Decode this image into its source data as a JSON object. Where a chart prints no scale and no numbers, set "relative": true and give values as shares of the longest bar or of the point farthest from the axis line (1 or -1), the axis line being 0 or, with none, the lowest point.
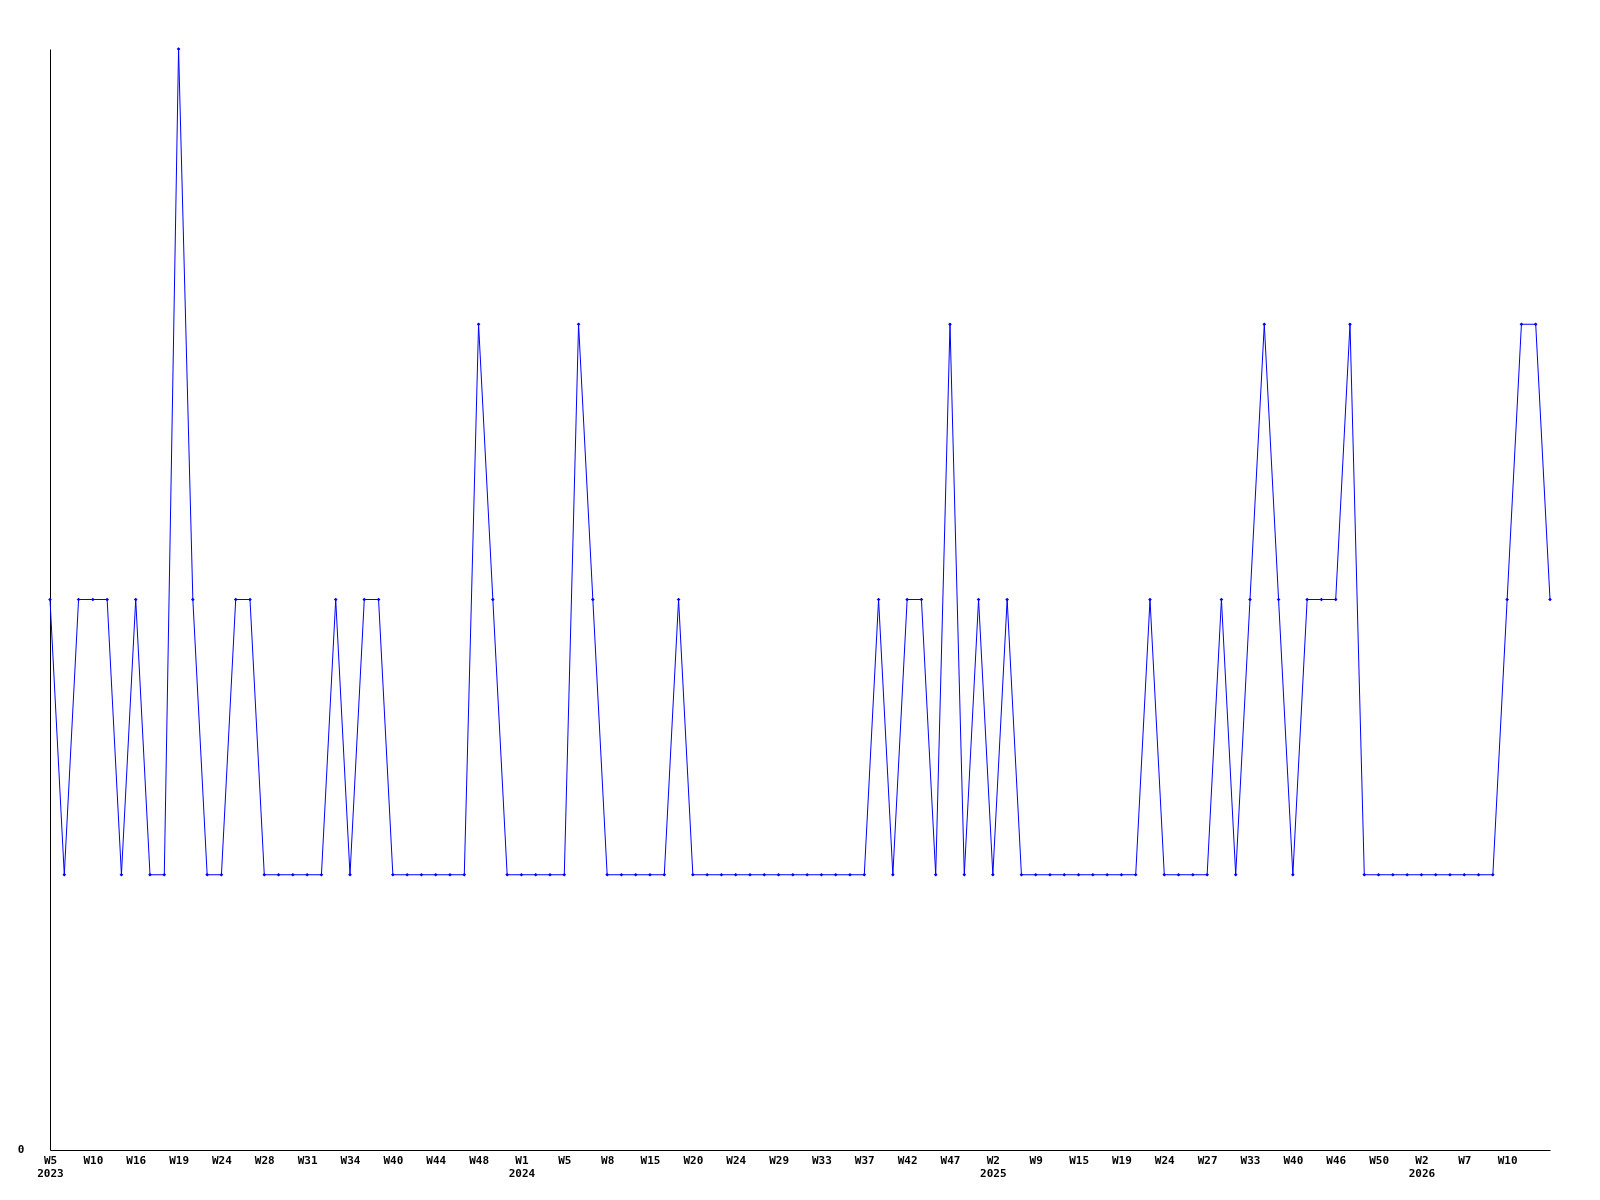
{
  "chart_data": {
    "type": "line",
    "relative": true,
    "marker": "diamond",
    "line_style": "solid",
    "grid": false,
    "legend": false,
    "annotations": [
      "0"
    ],
    "categories": [
      "W5\n2023",
      null,
      null,
      "W10",
      null,
      null,
      "W16",
      null,
      null,
      "W19",
      null,
      null,
      "W24",
      null,
      null,
      "W28",
      null,
      null,
      "W31",
      null,
      null,
      "W34",
      null,
      null,
      "W40",
      null,
      null,
      "W44",
      null,
      null,
      "W48",
      null,
      null,
      "W1\n2024",
      null,
      null,
      "W5",
      null,
      null,
      "W8",
      null,
      null,
      "W15",
      null,
      null,
      "W20",
      null,
      null,
      "W24",
      null,
      null,
      "W29",
      null,
      null,
      "W33",
      null,
      null,
      "W37",
      null,
      null,
      "W42",
      null,
      null,
      "W47",
      null,
      null,
      "W2\n2025",
      null,
      null,
      "W9",
      null,
      null,
      "W15",
      null,
      null,
      "W19",
      null,
      null,
      "W24",
      null,
      null,
      "W27",
      null,
      null,
      "W33",
      null,
      null,
      "W40",
      null,
      null,
      "W46",
      null,
      null,
      "W50",
      null,
      null,
      "W2\n2026",
      null,
      null,
      "W7",
      null,
      null,
      "W10",
      null,
      null,
      null
    ],
    "series": [
      {
        "color": "#0000ff",
        "values": [
          0.5,
          0.25,
          0.5,
          0.5,
          0.5,
          0.25,
          0.5,
          0.25,
          0.25,
          1,
          0.5,
          0.25,
          0.25,
          0.5,
          0.5,
          0.25,
          0.25,
          0.25,
          0.25,
          0.25,
          0.5,
          0.25,
          0.5,
          0.5,
          0.25,
          0.25,
          0.25,
          0.25,
          0.25,
          0.25,
          0.75,
          0.5,
          0.25,
          0.25,
          0.25,
          0.25,
          0.25,
          0.75,
          0.5,
          0.25,
          0.25,
          0.25,
          0.25,
          0.25,
          0.5,
          0.25,
          0.25,
          0.25,
          0.25,
          0.25,
          0.25,
          0.25,
          0.25,
          0.25,
          0.25,
          0.25,
          0.25,
          0.25,
          0.5,
          0.25,
          0.5,
          0.5,
          0.25,
          0.75,
          0.25,
          0.5,
          0.25,
          0.5,
          0.25,
          0.25,
          0.25,
          0.25,
          0.25,
          0.25,
          0.25,
          0.25,
          0.25,
          0.5,
          0.25,
          0.25,
          0.25,
          0.25,
          0.5,
          0.25,
          0.5,
          0.75,
          0.5,
          0.25,
          0.5,
          0.5,
          0.5,
          0.75,
          0.25,
          0.25,
          0.25,
          0.25,
          0.25,
          0.25,
          0.25,
          0.25,
          0.25,
          0.25,
          0.5,
          0.75,
          0.75,
          0.5
        ]
      }
    ]
  }
}
